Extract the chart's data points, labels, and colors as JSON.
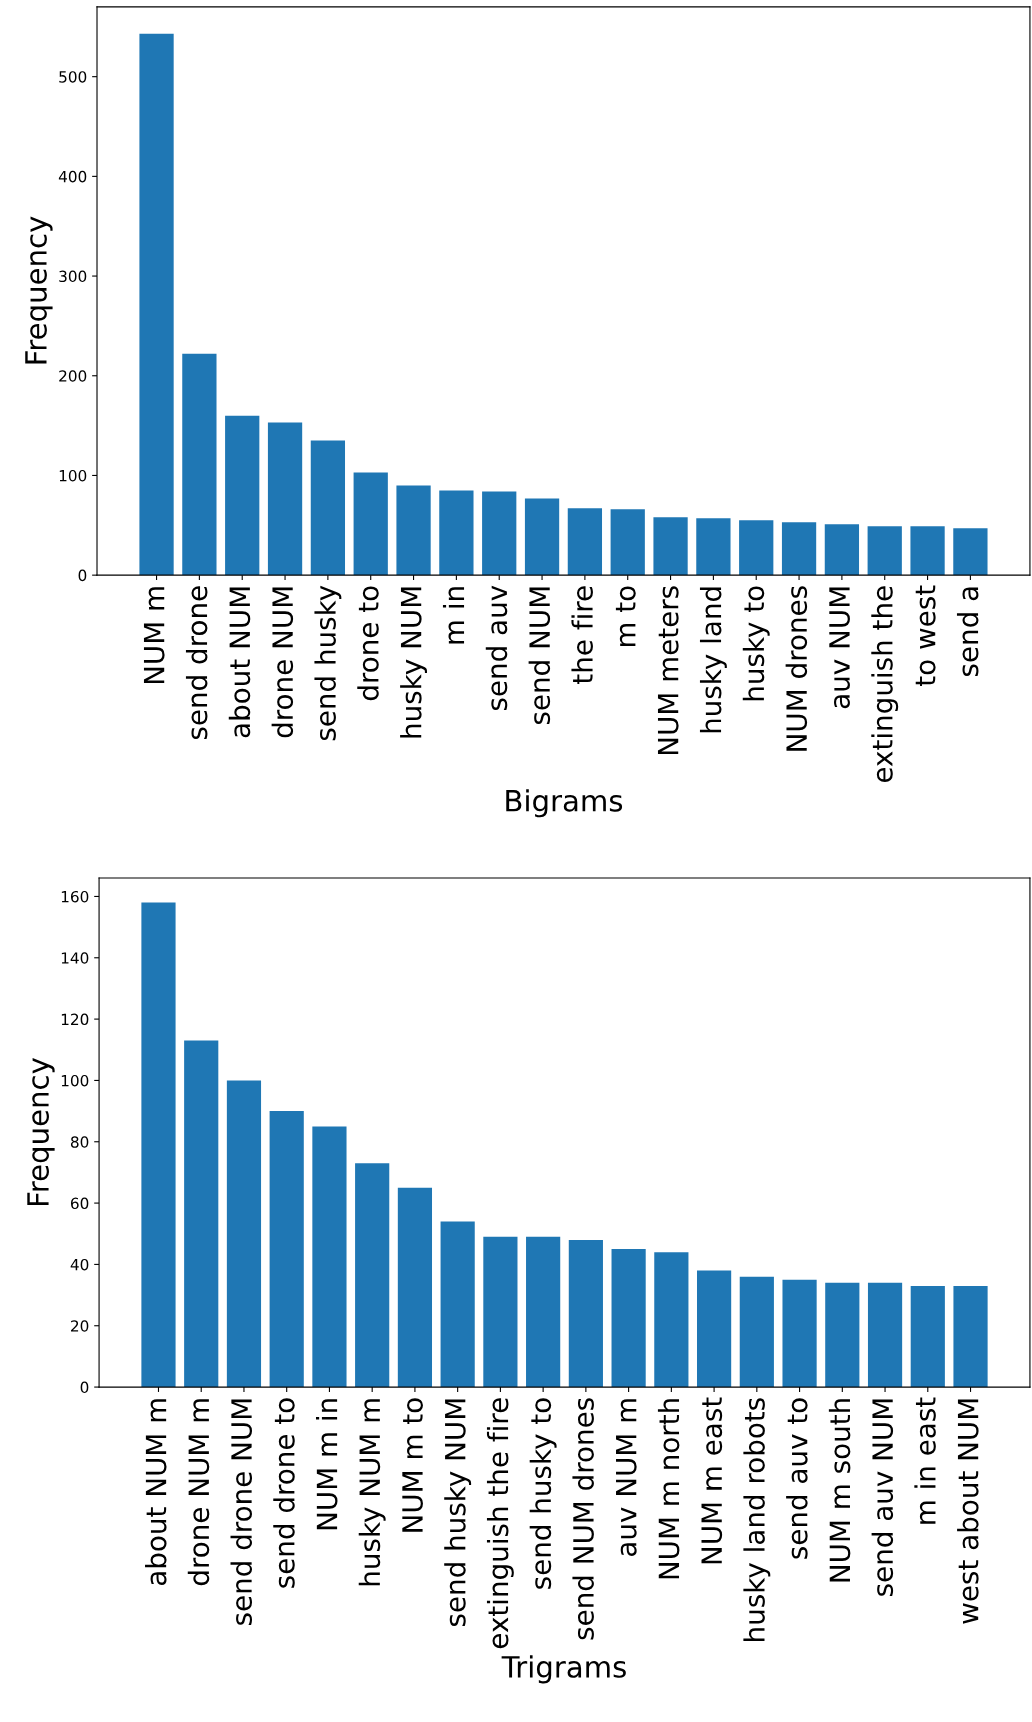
{
  "chart_data": [
    {
      "type": "bar",
      "xlabel": "Bigrams",
      "ylabel": "Frequency",
      "categories": [
        "NUM m",
        "send drone",
        "about NUM",
        "drone NUM",
        "send husky",
        "drone to",
        "husky NUM",
        "m in",
        "send auv",
        "send NUM",
        "the fire",
        "m to",
        "NUM meters",
        "husky land",
        "husky to",
        "NUM drones",
        "auv NUM",
        "extinguish the",
        "to west",
        "send a"
      ],
      "values": [
        543,
        222,
        160,
        153,
        135,
        103,
        90,
        85,
        84,
        77,
        67,
        66,
        58,
        57,
        55,
        53,
        51,
        49,
        49,
        47
      ],
      "color": "#1f77b4",
      "ylim": [
        0,
        570
      ],
      "yticks": [
        0,
        100,
        200,
        300,
        400,
        500
      ],
      "grid": false,
      "legend": false
    },
    {
      "type": "bar",
      "xlabel": "Trigrams",
      "ylabel": "Frequency",
      "categories": [
        "about NUM m",
        "drone NUM m",
        "send drone NUM",
        "send drone to",
        "NUM m in",
        "husky NUM m",
        "NUM m to",
        "send husky NUM",
        "extinguish the fire",
        "send husky to",
        "send NUM drones",
        "auv NUM m",
        "NUM m north",
        "NUM m east",
        "husky land robots",
        "send auv to",
        "NUM m south",
        "send auv NUM",
        "m in east",
        "west about NUM"
      ],
      "values": [
        158,
        113,
        100,
        90,
        85,
        73,
        65,
        54,
        49,
        49,
        48,
        45,
        44,
        38,
        36,
        35,
        34,
        34,
        33,
        33
      ],
      "color": "#1f77b4",
      "ylim": [
        0,
        166
      ],
      "yticks": [
        0,
        20,
        40,
        60,
        80,
        100,
        120,
        140,
        160
      ],
      "grid": false,
      "legend": false
    }
  ]
}
